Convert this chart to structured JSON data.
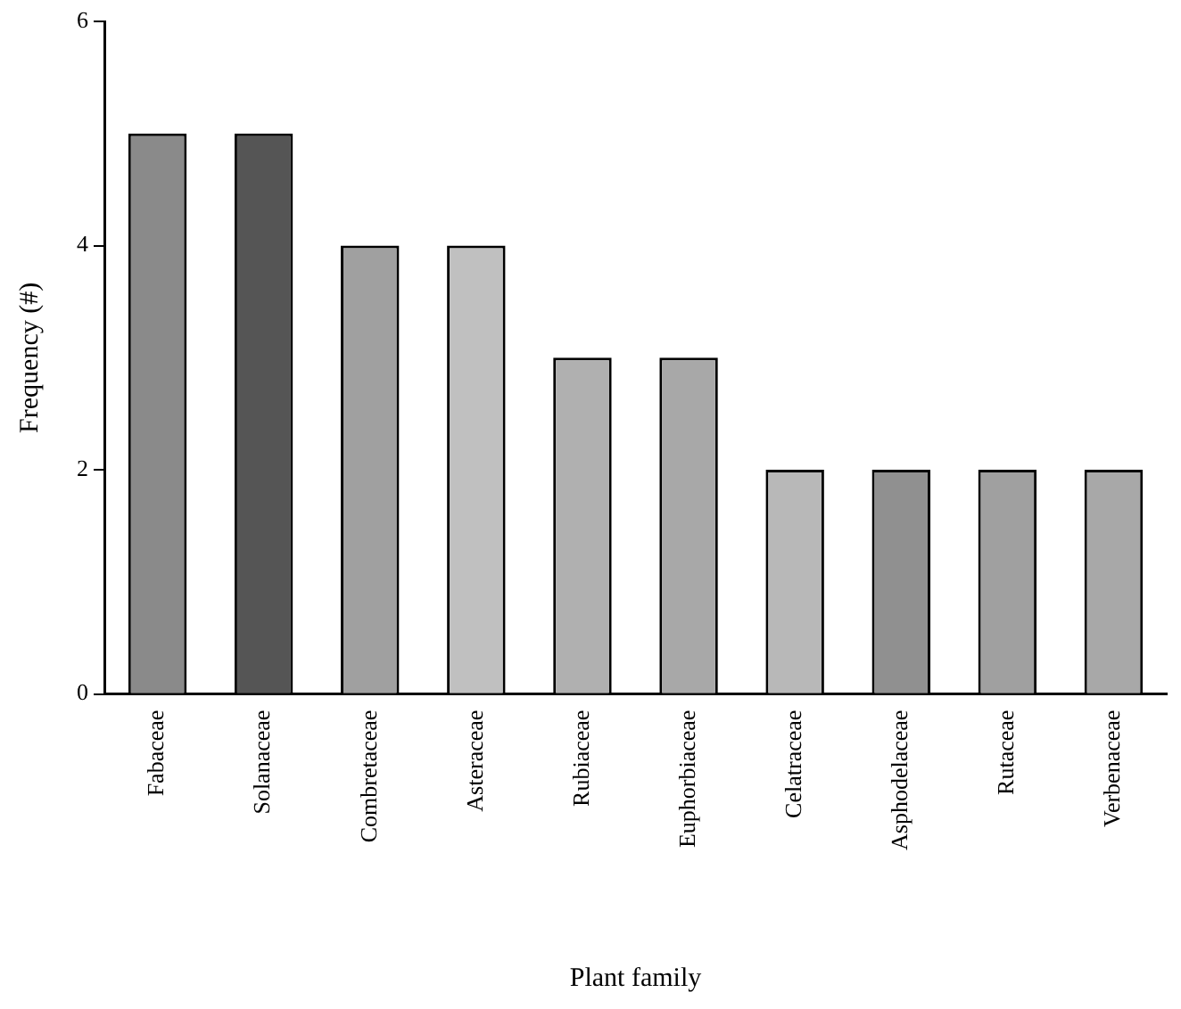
{
  "chart_data": {
    "type": "bar",
    "xlabel": "Plant family",
    "ylabel": "Frequency (#)",
    "categories": [
      "Fabaceae",
      "Solanaceae",
      "Combretaceae",
      "Asteraceae",
      "Rubiaceae",
      "Euphorbiaceae",
      "Celatraceae",
      "Asphodelaceae",
      "Rutaceae",
      "Verbenaceae"
    ],
    "values": [
      5,
      5,
      4,
      4,
      3,
      3,
      2,
      2,
      2,
      2
    ],
    "colors": [
      "#8a8a8a",
      "#555555",
      "#a0a0a0",
      "#c0c0c0",
      "#b0b0b0",
      "#a8a8a8",
      "#b8b8b8",
      "#909090",
      "#a0a0a0",
      "#a8a8a8"
    ],
    "ylim": [
      0,
      6
    ],
    "yticks": [
      0,
      2,
      4,
      6
    ],
    "grid": false,
    "legend": false
  }
}
